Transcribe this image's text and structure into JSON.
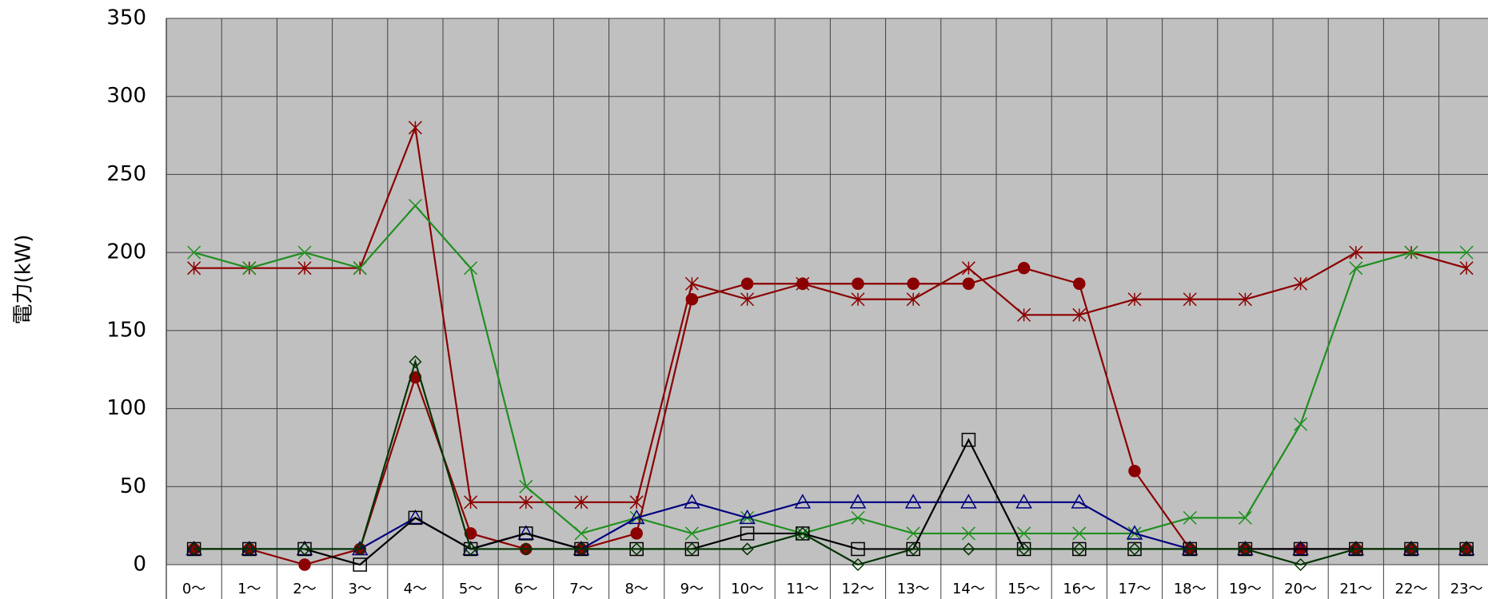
{
  "chart_data": {
    "type": "line",
    "ylabel": "電力(kW)",
    "categories": [
      "0〜",
      "1〜",
      "2〜",
      "3〜",
      "4〜",
      "5〜",
      "6〜",
      "7〜",
      "8〜",
      "9〜",
      "10〜",
      "11〜",
      "12〜",
      "13〜",
      "14〜",
      "15〜",
      "16〜",
      "17〜",
      "18〜",
      "19〜",
      "20〜",
      "21〜",
      "22〜",
      "23〜"
    ],
    "ylim": [
      0,
      350
    ],
    "yticks": [
      0,
      50,
      100,
      150,
      200,
      250,
      300,
      350
    ],
    "grid": true,
    "series": [
      {
        "color": "#8b0000",
        "marker": "asterisk",
        "values": [
          190,
          190,
          190,
          190,
          280,
          40,
          40,
          40,
          40,
          180,
          170,
          180,
          170,
          170,
          190,
          160,
          160,
          170,
          170,
          170,
          180,
          200,
          200,
          190
        ]
      },
      {
        "color": "#1f8f1f",
        "marker": "x",
        "values": [
          200,
          190,
          200,
          190,
          230,
          190,
          50,
          20,
          30,
          20,
          30,
          20,
          30,
          20,
          20,
          20,
          20,
          20,
          30,
          30,
          90,
          190,
          200,
          200
        ]
      },
      {
        "color": "#8b0000",
        "marker": "circle",
        "values": [
          10,
          10,
          0,
          10,
          120,
          20,
          10,
          10,
          20,
          170,
          180,
          180,
          180,
          180,
          180,
          190,
          180,
          60,
          10,
          10,
          10,
          10,
          10,
          10
        ]
      },
      {
        "color": "#000080",
        "marker": "triangle",
        "values": [
          10,
          10,
          10,
          10,
          30,
          10,
          20,
          10,
          30,
          40,
          30,
          40,
          40,
          40,
          40,
          40,
          40,
          20,
          10,
          10,
          10,
          10,
          10,
          10
        ]
      },
      {
        "color": "#000000",
        "marker": "square",
        "values": [
          10,
          10,
          10,
          0,
          30,
          10,
          20,
          10,
          10,
          10,
          20,
          20,
          10,
          10,
          80,
          10,
          10,
          10,
          10,
          10,
          10,
          10,
          10,
          10
        ]
      },
      {
        "color": "#003300",
        "marker": "diamond",
        "values": [
          10,
          10,
          10,
          10,
          130,
          10,
          10,
          10,
          10,
          10,
          10,
          20,
          0,
          10,
          10,
          10,
          10,
          10,
          10,
          10,
          0,
          10,
          10,
          10
        ]
      }
    ]
  }
}
